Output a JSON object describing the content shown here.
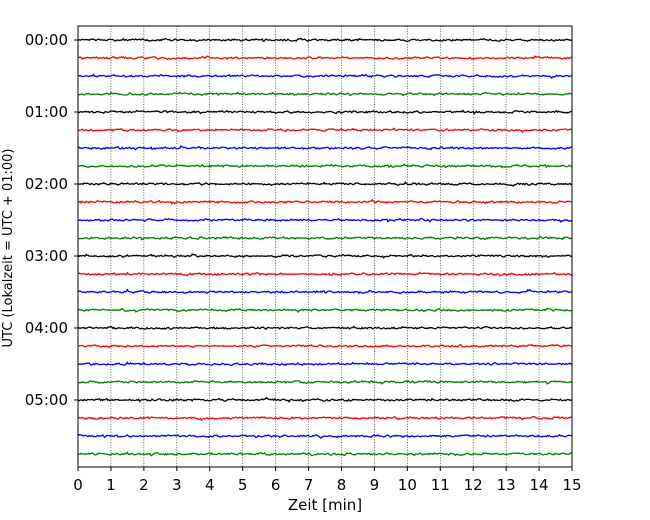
{
  "chart_data": {
    "type": "line",
    "title": "",
    "xlabel": "Zeit  [min]",
    "ylabel": "UTC (Lokalzeit = UTC + 01:00)",
    "xlim": [
      0,
      15
    ],
    "x_ticks": [
      "0",
      "1",
      "2",
      "3",
      "4",
      "5",
      "6",
      "7",
      "8",
      "9",
      "10",
      "11",
      "12",
      "13",
      "14",
      "15"
    ],
    "y_tick_labels": [
      "00:00",
      "01:00",
      "02:00",
      "03:00",
      "04:00",
      "05:00"
    ],
    "grid": "vertical dotted at each minute",
    "traces_per_hour": 4,
    "minutes_per_trace": 15,
    "trace_colors": [
      "#000000",
      "#ff0000",
      "#0000ff",
      "#007f00"
    ],
    "traces": [
      {
        "start": "00:00",
        "color": "#000000"
      },
      {
        "start": "00:15",
        "color": "#ff0000"
      },
      {
        "start": "00:30",
        "color": "#0000ff"
      },
      {
        "start": "00:45",
        "color": "#007f00"
      },
      {
        "start": "01:00",
        "color": "#000000"
      },
      {
        "start": "01:15",
        "color": "#ff0000"
      },
      {
        "start": "01:30",
        "color": "#0000ff"
      },
      {
        "start": "01:45",
        "color": "#007f00"
      },
      {
        "start": "02:00",
        "color": "#000000"
      },
      {
        "start": "02:15",
        "color": "#ff0000"
      },
      {
        "start": "02:30",
        "color": "#0000ff"
      },
      {
        "start": "02:45",
        "color": "#007f00"
      },
      {
        "start": "03:00",
        "color": "#000000"
      },
      {
        "start": "03:15",
        "color": "#ff0000"
      },
      {
        "start": "03:30",
        "color": "#0000ff"
      },
      {
        "start": "03:45",
        "color": "#007f00"
      },
      {
        "start": "04:00",
        "color": "#000000"
      },
      {
        "start": "04:15",
        "color": "#ff0000"
      },
      {
        "start": "04:30",
        "color": "#0000ff"
      },
      {
        "start": "04:45",
        "color": "#007f00"
      },
      {
        "start": "05:00",
        "color": "#000000"
      },
      {
        "start": "05:15",
        "color": "#ff0000"
      },
      {
        "start": "05:30",
        "color": "#0000ff"
      },
      {
        "start": "05:45",
        "color": "#007f00"
      }
    ]
  }
}
